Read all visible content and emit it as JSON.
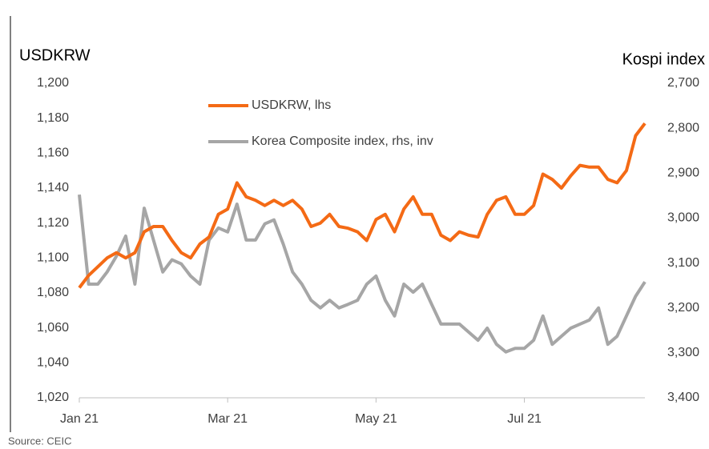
{
  "chart_data": {
    "type": "line",
    "y_title": "USDKRW",
    "y2_title": "Kospi index",
    "source": "Source: CEIC",
    "categories": [
      "Jan 21",
      null,
      null,
      null,
      null,
      null,
      null,
      null,
      null,
      null,
      null,
      null,
      null,
      null,
      null,
      null,
      "Mar 21",
      null,
      null,
      null,
      null,
      null,
      null,
      null,
      null,
      null,
      null,
      null,
      null,
      null,
      null,
      null,
      "May 21",
      null,
      null,
      null,
      null,
      null,
      null,
      null,
      null,
      null,
      null,
      null,
      null,
      null,
      null,
      null,
      "Jul 21",
      null,
      null,
      null,
      null,
      null,
      null,
      null,
      null,
      null,
      null,
      null,
      null,
      null
    ],
    "series": [
      {
        "name": "USDKRW, lhs",
        "color": "#f46a15",
        "axis": "y",
        "values": [
          1083,
          1090,
          1095,
          1100,
          1103,
          1100,
          1103,
          1115,
          1118,
          1118,
          1110,
          1103,
          1100,
          1108,
          1112,
          1125,
          1128,
          1143,
          1135,
          1133,
          1130,
          1133,
          1130,
          1133,
          1128,
          1118,
          1120,
          1125,
          1118,
          1117,
          1115,
          1110,
          1122,
          1125,
          1115,
          1128,
          1135,
          1125,
          1125,
          1113,
          1110,
          1115,
          1113,
          1112,
          1125,
          1133,
          1135,
          1125,
          1125,
          1130,
          1148,
          1145,
          1140,
          1147,
          1153,
          1152,
          1152,
          1145,
          1143,
          1150,
          1170,
          1177
        ]
      },
      {
        "name": "Korea Composite index, rhs, inv",
        "color": "#a6a6a6",
        "axis": "y2",
        "values": [
          2948,
          3147,
          3147,
          3120,
          3085,
          3040,
          3147,
          2978,
          3049,
          3120,
          3093,
          3102,
          3129,
          3147,
          3049,
          3022,
          3031,
          2969,
          3049,
          3049,
          3013,
          3004,
          3058,
          3120,
          3147,
          3183,
          3200,
          3183,
          3200,
          3192,
          3183,
          3147,
          3129,
          3183,
          3218,
          3147,
          3165,
          3147,
          3192,
          3236,
          3236,
          3236,
          3254,
          3272,
          3245,
          3281,
          3298,
          3290,
          3290,
          3272,
          3218,
          3281,
          3263,
          3245,
          3236,
          3227,
          3200,
          3281,
          3263,
          3218,
          3174,
          3142
        ]
      }
    ],
    "ylim": [
      1020,
      1200
    ],
    "yticks": [
      {
        "value": 1020,
        "label": "1,020"
      },
      {
        "value": 1040,
        "label": "1,040"
      },
      {
        "value": 1060,
        "label": "1,060"
      },
      {
        "value": 1080,
        "label": "1,080"
      },
      {
        "value": 1100,
        "label": "1,100"
      },
      {
        "value": 1120,
        "label": "1,120"
      },
      {
        "value": 1140,
        "label": "1,140"
      },
      {
        "value": 1160,
        "label": "1,160"
      },
      {
        "value": 1180,
        "label": "1,180"
      },
      {
        "value": 1200,
        "label": "1,200"
      }
    ],
    "y2lim": [
      3400,
      2700
    ],
    "y2ticks": [
      {
        "value": 3400,
        "label": "3,400"
      },
      {
        "value": 3300,
        "label": "3,300"
      },
      {
        "value": 3200,
        "label": "3,200"
      },
      {
        "value": 3100,
        "label": "3,100"
      },
      {
        "value": 3000,
        "label": "3,000"
      },
      {
        "value": 2900,
        "label": "2,900"
      },
      {
        "value": 2800,
        "label": "2,800"
      },
      {
        "value": 2700,
        "label": "2,700"
      }
    ],
    "grid": false,
    "legend": "top-center"
  }
}
